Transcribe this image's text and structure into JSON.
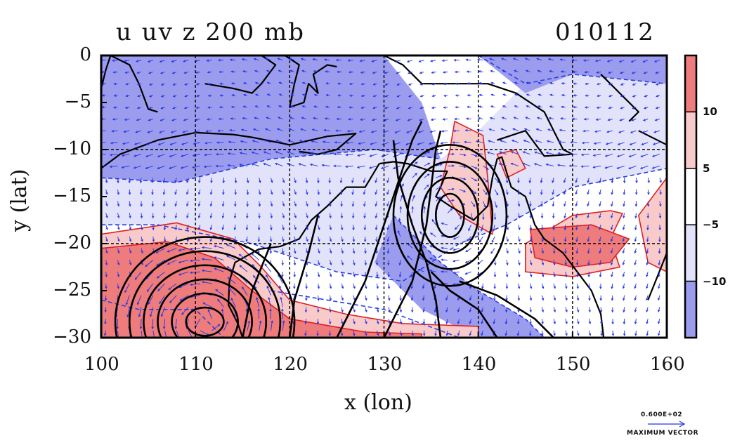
{
  "chart_data": {
    "type": "heatmap",
    "title_left": "u uv z 200 mb",
    "title_right": "010112",
    "xlabel": "x (lon)",
    "ylabel": "y (lat)",
    "xlim": [
      100,
      160
    ],
    "ylim": [
      -30,
      0
    ],
    "x_ticks": [
      "100",
      "110",
      "120",
      "130",
      "140",
      "150",
      "160"
    ],
    "y_ticks": [
      "0",
      "−5",
      "−10",
      "−15",
      "−20",
      "−25",
      "−30"
    ],
    "grid_lon": [
      110,
      120,
      130,
      140,
      150
    ],
    "grid_lat": [
      -10,
      -20
    ],
    "colorbar": {
      "tick_labels": [
        "10",
        "5",
        "−5",
        "−10"
      ],
      "colors": [
        "#ee7c7c",
        "#f8caca",
        "#ffffff",
        "#e2e2fa",
        "#9c9cee"
      ]
    },
    "vector_scale": {
      "value": "0.600E+02",
      "label": "MAXIMUM VECTOR"
    },
    "u_shaded_regions": [
      {
        "level": "<=-10",
        "color": "#9c9cee",
        "points": [
          [
            100,
            0
          ],
          [
            130,
            0
          ],
          [
            134,
            -5
          ],
          [
            136,
            -11
          ],
          [
            129,
            -10
          ],
          [
            118,
            -11
          ],
          [
            108,
            -13.5
          ],
          [
            100,
            -13
          ]
        ]
      },
      {
        "level": "-10..-5",
        "color": "#e2e2fa",
        "points": [
          [
            100,
            -13
          ],
          [
            108,
            -13.5
          ],
          [
            118,
            -11
          ],
          [
            129,
            -10
          ],
          [
            136,
            -11
          ],
          [
            140,
            -8
          ],
          [
            145,
            -3
          ],
          [
            150,
            0
          ],
          [
            160,
            0
          ],
          [
            160,
            -12
          ],
          [
            150,
            -14
          ],
          [
            143,
            -18
          ],
          [
            138,
            -20
          ],
          [
            132,
            -24
          ],
          [
            125,
            -23
          ],
          [
            116,
            -20
          ],
          [
            106,
            -18
          ],
          [
            100,
            -18
          ]
        ]
      },
      {
        "level": "<=-10",
        "color": "#9c9cee",
        "points": [
          [
            131,
            -17
          ],
          [
            136,
            -22
          ],
          [
            140,
            -25
          ],
          [
            145,
            -28
          ],
          [
            147,
            -30
          ],
          [
            140,
            -30
          ],
          [
            134,
            -27
          ],
          [
            129,
            -22
          ]
        ]
      },
      {
        "level": "<=-10",
        "color": "#9c9cee",
        "points": [
          [
            140,
            0
          ],
          [
            160,
            0
          ],
          [
            160,
            -3
          ],
          [
            150,
            -2
          ],
          [
            145,
            -4
          ]
        ]
      },
      {
        "level": "5..10",
        "color": "#f8caca",
        "points": [
          [
            100,
            -19
          ],
          [
            108,
            -17.8
          ],
          [
            114,
            -19.5
          ],
          [
            117,
            -22.5
          ],
          [
            120,
            -26
          ],
          [
            126,
            -27.5
          ],
          [
            132,
            -28.5
          ],
          [
            140,
            -28.8
          ],
          [
            140,
            -30
          ],
          [
            100,
            -30
          ]
        ]
      },
      {
        "level": ">=10",
        "color": "#ee7c7c",
        "points": [
          [
            100,
            -20.5
          ],
          [
            107,
            -19.8
          ],
          [
            112,
            -21.5
          ],
          [
            116,
            -25
          ],
          [
            120,
            -28
          ],
          [
            128,
            -29.4
          ],
          [
            134,
            -29.6
          ],
          [
            134,
            -30
          ],
          [
            100,
            -30
          ]
        ]
      },
      {
        "level": "5..10",
        "color": "#f8caca",
        "points": [
          [
            137.5,
            -7
          ],
          [
            140.5,
            -8.5
          ],
          [
            141,
            -13
          ],
          [
            141.5,
            -19
          ],
          [
            138,
            -17
          ],
          [
            136,
            -14
          ],
          [
            137,
            -10
          ]
        ]
      },
      {
        "level": "5..10",
        "color": "#f8caca",
        "points": [
          [
            145,
            -20
          ],
          [
            150,
            -17
          ],
          [
            154,
            -16.5
          ],
          [
            155.3,
            -16.8
          ],
          [
            154,
            -19.5
          ],
          [
            155,
            -22.5
          ],
          [
            150,
            -23.5
          ],
          [
            145,
            -23
          ]
        ]
      },
      {
        "level": ">=10",
        "color": "#ee7c7c",
        "points": [
          [
            145.5,
            -18.5
          ],
          [
            152,
            -18
          ],
          [
            156,
            -19.5
          ],
          [
            154,
            -22
          ],
          [
            150,
            -22.5
          ],
          [
            146,
            -21.5
          ]
        ]
      },
      {
        "level": "5..10",
        "color": "#f8caca",
        "points": [
          [
            157,
            -17
          ],
          [
            160,
            -13
          ],
          [
            160,
            -23
          ],
          [
            158,
            -22
          ]
        ]
      },
      {
        "level": "5..10",
        "color": "#f8caca",
        "points": [
          [
            142,
            -10.5
          ],
          [
            144,
            -10
          ],
          [
            145,
            -12
          ],
          [
            143,
            -13
          ]
        ]
      }
    ],
    "z_contour_systems": [
      {
        "center": [
          111,
          -28.3
        ],
        "rx": [
          2,
          3.5,
          5,
          6.5,
          8,
          9.5
        ],
        "ry": [
          1.5,
          3,
          4.5,
          6,
          7.5,
          9
        ]
      },
      {
        "center": [
          137,
          -17
        ],
        "rx": [
          1.5,
          3,
          4.5,
          6
        ],
        "ry": [
          2.3,
          4,
          5.7,
          7.5
        ]
      }
    ]
  }
}
